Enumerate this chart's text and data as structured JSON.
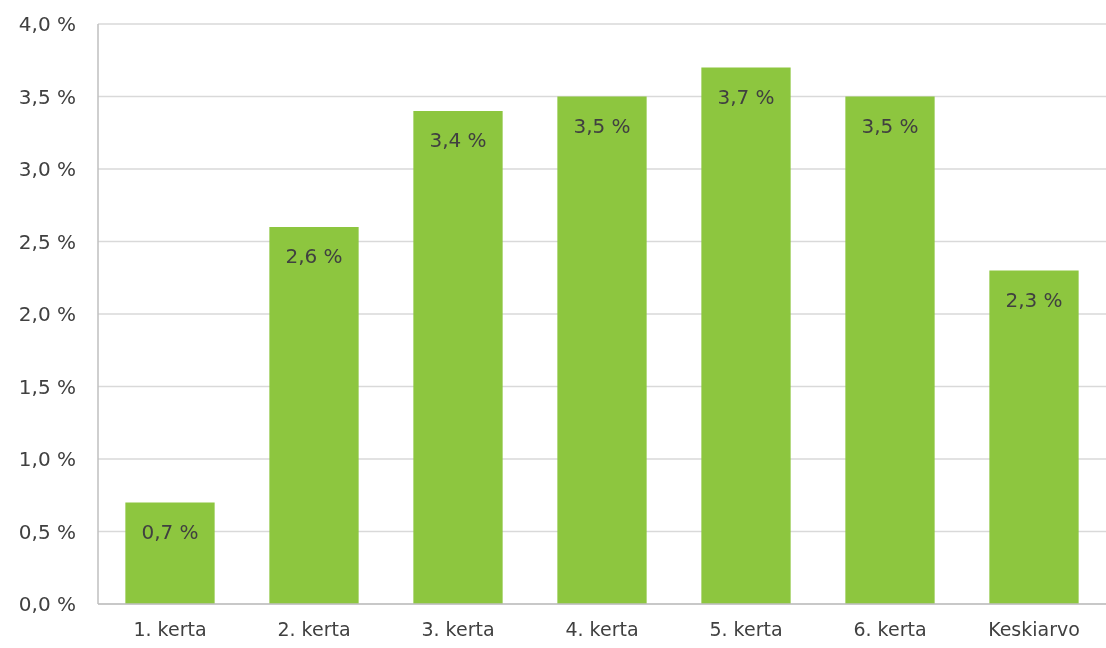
{
  "chart_data": {
    "type": "bar",
    "categories": [
      "1. kerta",
      "2. kerta",
      "3. kerta",
      "4. kerta",
      "5. kerta",
      "6. kerta",
      "Keskiarvo"
    ],
    "values": [
      0.7,
      2.6,
      3.4,
      3.5,
      3.7,
      3.5,
      2.3
    ],
    "value_labels": [
      "0,7 %",
      "2,6 %",
      "3,4 %",
      "3,5 %",
      "3,7 %",
      "3,5 %",
      "2,3 %"
    ],
    "color": "#8dc63f",
    "ylim": [
      0,
      4
    ],
    "yticks": [
      {
        "value": 0,
        "label": "0,0 %"
      },
      {
        "value": 0.5,
        "label": "0,5 %"
      },
      {
        "value": 1,
        "label": "1,0 %"
      },
      {
        "value": 1.5,
        "label": "1,5 %"
      },
      {
        "value": 2,
        "label": "2,0 %"
      },
      {
        "value": 2.5,
        "label": "2,5 %"
      },
      {
        "value": 3,
        "label": "3,0 %"
      },
      {
        "value": 3.5,
        "label": "3,5 %"
      },
      {
        "value": 4,
        "label": "4,0 %"
      }
    ],
    "grid": "y"
  }
}
